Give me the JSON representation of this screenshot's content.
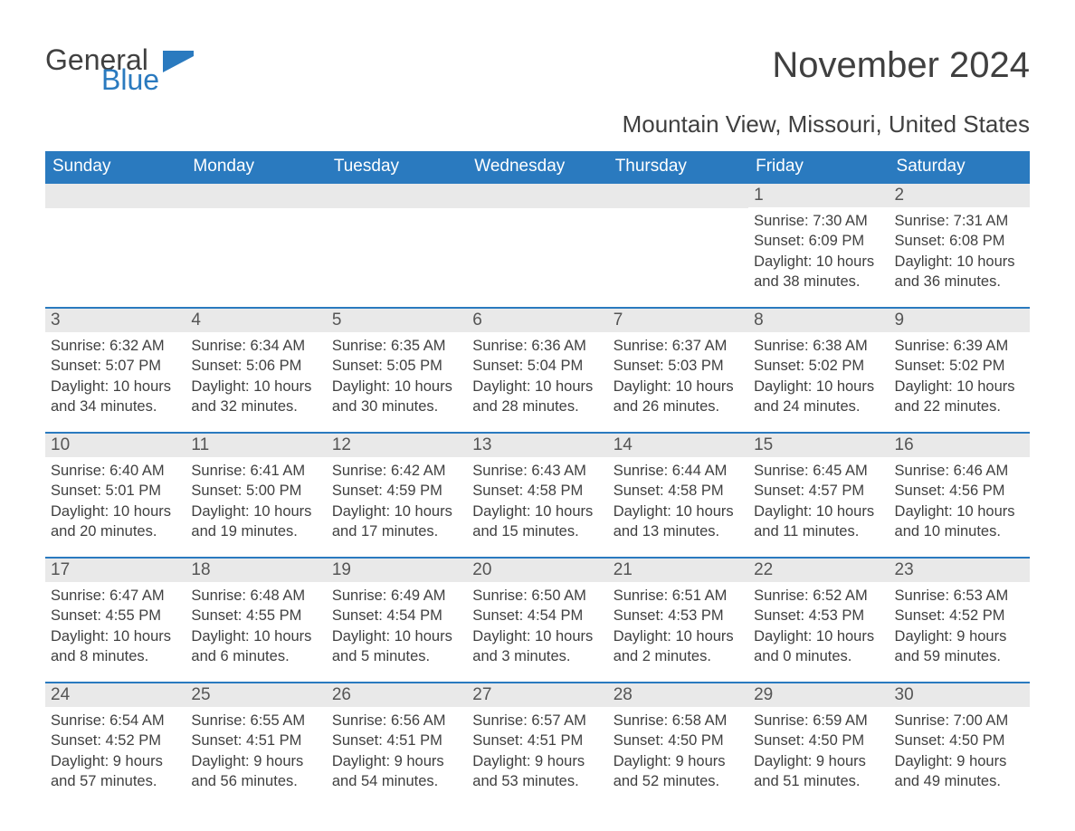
{
  "logo": {
    "text1": "General",
    "text2": "Blue",
    "accent_color": "#2a7abf"
  },
  "header": {
    "title": "November 2024",
    "subtitle": "Mountain View, Missouri, United States"
  },
  "calendar": {
    "type": "table",
    "header_bg": "#2a7abf",
    "header_text_color": "#ffffff",
    "row_border_color": "#2a7abf",
    "daynum_bg": "#e9e9e9",
    "text_color": "#404040",
    "background_color": "#ffffff",
    "font_family": "Arial",
    "title_fontsize": 40,
    "subtitle_fontsize": 26,
    "header_fontsize": 19,
    "body_fontsize": 16.5,
    "columns": [
      "Sunday",
      "Monday",
      "Tuesday",
      "Wednesday",
      "Thursday",
      "Friday",
      "Saturday"
    ],
    "weeks": [
      [
        null,
        null,
        null,
        null,
        null,
        {
          "day": "1",
          "sunrise": "Sunrise: 7:30 AM",
          "sunset": "Sunset: 6:09 PM",
          "daylight1": "Daylight: 10 hours",
          "daylight2": "and 38 minutes."
        },
        {
          "day": "2",
          "sunrise": "Sunrise: 7:31 AM",
          "sunset": "Sunset: 6:08 PM",
          "daylight1": "Daylight: 10 hours",
          "daylight2": "and 36 minutes."
        }
      ],
      [
        {
          "day": "3",
          "sunrise": "Sunrise: 6:32 AM",
          "sunset": "Sunset: 5:07 PM",
          "daylight1": "Daylight: 10 hours",
          "daylight2": "and 34 minutes."
        },
        {
          "day": "4",
          "sunrise": "Sunrise: 6:34 AM",
          "sunset": "Sunset: 5:06 PM",
          "daylight1": "Daylight: 10 hours",
          "daylight2": "and 32 minutes."
        },
        {
          "day": "5",
          "sunrise": "Sunrise: 6:35 AM",
          "sunset": "Sunset: 5:05 PM",
          "daylight1": "Daylight: 10 hours",
          "daylight2": "and 30 minutes."
        },
        {
          "day": "6",
          "sunrise": "Sunrise: 6:36 AM",
          "sunset": "Sunset: 5:04 PM",
          "daylight1": "Daylight: 10 hours",
          "daylight2": "and 28 minutes."
        },
        {
          "day": "7",
          "sunrise": "Sunrise: 6:37 AM",
          "sunset": "Sunset: 5:03 PM",
          "daylight1": "Daylight: 10 hours",
          "daylight2": "and 26 minutes."
        },
        {
          "day": "8",
          "sunrise": "Sunrise: 6:38 AM",
          "sunset": "Sunset: 5:02 PM",
          "daylight1": "Daylight: 10 hours",
          "daylight2": "and 24 minutes."
        },
        {
          "day": "9",
          "sunrise": "Sunrise: 6:39 AM",
          "sunset": "Sunset: 5:02 PM",
          "daylight1": "Daylight: 10 hours",
          "daylight2": "and 22 minutes."
        }
      ],
      [
        {
          "day": "10",
          "sunrise": "Sunrise: 6:40 AM",
          "sunset": "Sunset: 5:01 PM",
          "daylight1": "Daylight: 10 hours",
          "daylight2": "and 20 minutes."
        },
        {
          "day": "11",
          "sunrise": "Sunrise: 6:41 AM",
          "sunset": "Sunset: 5:00 PM",
          "daylight1": "Daylight: 10 hours",
          "daylight2": "and 19 minutes."
        },
        {
          "day": "12",
          "sunrise": "Sunrise: 6:42 AM",
          "sunset": "Sunset: 4:59 PM",
          "daylight1": "Daylight: 10 hours",
          "daylight2": "and 17 minutes."
        },
        {
          "day": "13",
          "sunrise": "Sunrise: 6:43 AM",
          "sunset": "Sunset: 4:58 PM",
          "daylight1": "Daylight: 10 hours",
          "daylight2": "and 15 minutes."
        },
        {
          "day": "14",
          "sunrise": "Sunrise: 6:44 AM",
          "sunset": "Sunset: 4:58 PM",
          "daylight1": "Daylight: 10 hours",
          "daylight2": "and 13 minutes."
        },
        {
          "day": "15",
          "sunrise": "Sunrise: 6:45 AM",
          "sunset": "Sunset: 4:57 PM",
          "daylight1": "Daylight: 10 hours",
          "daylight2": "and 11 minutes."
        },
        {
          "day": "16",
          "sunrise": "Sunrise: 6:46 AM",
          "sunset": "Sunset: 4:56 PM",
          "daylight1": "Daylight: 10 hours",
          "daylight2": "and 10 minutes."
        }
      ],
      [
        {
          "day": "17",
          "sunrise": "Sunrise: 6:47 AM",
          "sunset": "Sunset: 4:55 PM",
          "daylight1": "Daylight: 10 hours",
          "daylight2": "and 8 minutes."
        },
        {
          "day": "18",
          "sunrise": "Sunrise: 6:48 AM",
          "sunset": "Sunset: 4:55 PM",
          "daylight1": "Daylight: 10 hours",
          "daylight2": "and 6 minutes."
        },
        {
          "day": "19",
          "sunrise": "Sunrise: 6:49 AM",
          "sunset": "Sunset: 4:54 PM",
          "daylight1": "Daylight: 10 hours",
          "daylight2": "and 5 minutes."
        },
        {
          "day": "20",
          "sunrise": "Sunrise: 6:50 AM",
          "sunset": "Sunset: 4:54 PM",
          "daylight1": "Daylight: 10 hours",
          "daylight2": "and 3 minutes."
        },
        {
          "day": "21",
          "sunrise": "Sunrise: 6:51 AM",
          "sunset": "Sunset: 4:53 PM",
          "daylight1": "Daylight: 10 hours",
          "daylight2": "and 2 minutes."
        },
        {
          "day": "22",
          "sunrise": "Sunrise: 6:52 AM",
          "sunset": "Sunset: 4:53 PM",
          "daylight1": "Daylight: 10 hours",
          "daylight2": "and 0 minutes."
        },
        {
          "day": "23",
          "sunrise": "Sunrise: 6:53 AM",
          "sunset": "Sunset: 4:52 PM",
          "daylight1": "Daylight: 9 hours",
          "daylight2": "and 59 minutes."
        }
      ],
      [
        {
          "day": "24",
          "sunrise": "Sunrise: 6:54 AM",
          "sunset": "Sunset: 4:52 PM",
          "daylight1": "Daylight: 9 hours",
          "daylight2": "and 57 minutes."
        },
        {
          "day": "25",
          "sunrise": "Sunrise: 6:55 AM",
          "sunset": "Sunset: 4:51 PM",
          "daylight1": "Daylight: 9 hours",
          "daylight2": "and 56 minutes."
        },
        {
          "day": "26",
          "sunrise": "Sunrise: 6:56 AM",
          "sunset": "Sunset: 4:51 PM",
          "daylight1": "Daylight: 9 hours",
          "daylight2": "and 54 minutes."
        },
        {
          "day": "27",
          "sunrise": "Sunrise: 6:57 AM",
          "sunset": "Sunset: 4:51 PM",
          "daylight1": "Daylight: 9 hours",
          "daylight2": "and 53 minutes."
        },
        {
          "day": "28",
          "sunrise": "Sunrise: 6:58 AM",
          "sunset": "Sunset: 4:50 PM",
          "daylight1": "Daylight: 9 hours",
          "daylight2": "and 52 minutes."
        },
        {
          "day": "29",
          "sunrise": "Sunrise: 6:59 AM",
          "sunset": "Sunset: 4:50 PM",
          "daylight1": "Daylight: 9 hours",
          "daylight2": "and 51 minutes."
        },
        {
          "day": "30",
          "sunrise": "Sunrise: 7:00 AM",
          "sunset": "Sunset: 4:50 PM",
          "daylight1": "Daylight: 9 hours",
          "daylight2": "and 49 minutes."
        }
      ]
    ]
  }
}
